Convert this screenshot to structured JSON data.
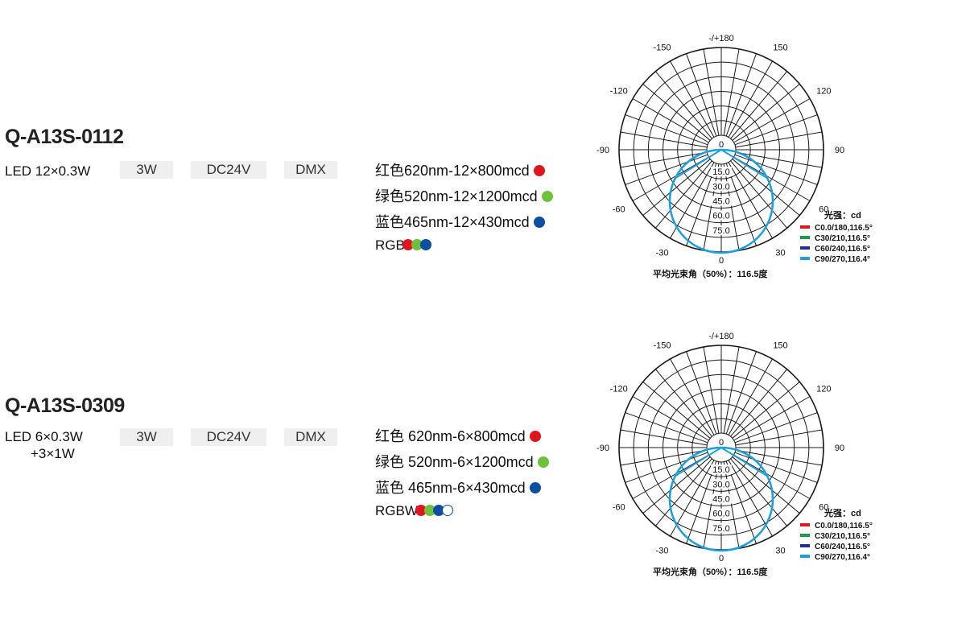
{
  "products": [
    {
      "model": "Q-A13S-0112",
      "led_line1": "LED 12×0.3W",
      "led_line2": "",
      "power": "3W",
      "voltage": "DC24V",
      "control": "DMX",
      "colors": [
        {
          "label": "红色620nm-12×800mcd",
          "color": "#e0161e"
        },
        {
          "label": "绿色520nm-12×1200mcd",
          "color": "#6cc23a"
        },
        {
          "label": "蓝色465nm-12×430mcd",
          "color": "#0b4ea2"
        }
      ],
      "mode": "RGB",
      "mode_dots": [
        "r",
        "g",
        "b"
      ]
    },
    {
      "model": "Q-A13S-0309",
      "led_line1": "LED 6×0.3W",
      "led_line2": "+3×1W",
      "power": "3W",
      "voltage": "DC24V",
      "control": "DMX",
      "colors": [
        {
          "label": "红色 620nm-6×800mcd",
          "color": "#e0161e"
        },
        {
          "label": "绿色 520nm-6×1200mcd",
          "color": "#6cc23a"
        },
        {
          "label": "蓝色 465nm-6×430mcd",
          "color": "#0b4ea2"
        }
      ],
      "mode": "RGBW",
      "mode_dots": [
        "r",
        "g",
        "b",
        "w"
      ]
    }
  ],
  "polar": {
    "angle_labels": {
      "top": "-/+180",
      "n150": "-150",
      "p150": "150",
      "n120": "-120",
      "p120": "120",
      "n90": "-90",
      "p90": "90",
      "n60": "-60",
      "p60": "60",
      "n30": "-30",
      "p30": "30",
      "bottom": "0"
    },
    "center_label": "0",
    "radial_labels": [
      "15.0",
      "30.0",
      "45.0",
      "60.0",
      "75.0"
    ],
    "legend_title": "光强：cd",
    "legend": [
      {
        "label": "C0.0/180,116.5°",
        "color": "#e0161e"
      },
      {
        "label": "C30/210,116.5°",
        "color": "#1a9a4a"
      },
      {
        "label": "C60/240,116.5°",
        "color": "#1d2f8f"
      },
      {
        "label": "C90/270,116.4°",
        "color": "#1fa0dc"
      }
    ],
    "beam_angle": "平均光束角（50%）：116.5度",
    "curve_color": "#1fa0dc"
  }
}
